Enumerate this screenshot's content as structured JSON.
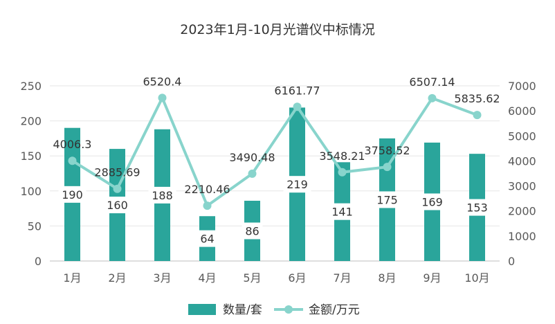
{
  "chart_data": {
    "type": "bar",
    "title": "2023年1月-10月光谱仪中标情况",
    "categories": [
      "1月",
      "2月",
      "3月",
      "4月",
      "5月",
      "6月",
      "7月",
      "8月",
      "9月",
      "10月"
    ],
    "series": [
      {
        "name": "数量/套",
        "type": "bar",
        "axis": "left",
        "color": "#2aa59b",
        "values": [
          190,
          160,
          188,
          64,
          86,
          219,
          141,
          175,
          169,
          153
        ],
        "labels": [
          "190",
          "160",
          "188",
          "64",
          "86",
          "219",
          "141",
          "175",
          "169",
          "153"
        ]
      },
      {
        "name": "金额/万元",
        "type": "line",
        "axis": "right",
        "color": "#88d4cc",
        "values": [
          4006.3,
          2885.69,
          6520.4,
          2210.46,
          3490.48,
          6161.77,
          3548.21,
          3758.52,
          6507.14,
          5835.62
        ],
        "labels": [
          "4006.3",
          "2885.69",
          "6520.4",
          "2210.46",
          "3490.48",
          "6161.77",
          "3548.21",
          "3758.52",
          "6507.14",
          "5835.62"
        ]
      }
    ],
    "ylim_left": [
      0,
      250
    ],
    "yticks_left": [
      "0",
      "50",
      "100",
      "150",
      "200",
      "250"
    ],
    "ylim_right": [
      0,
      7000
    ],
    "yticks_right": [
      "0",
      "1000",
      "2000",
      "3000",
      "4000",
      "5000",
      "6000",
      "7000"
    ],
    "grid": "horizontal",
    "legend": "bottom-center"
  }
}
